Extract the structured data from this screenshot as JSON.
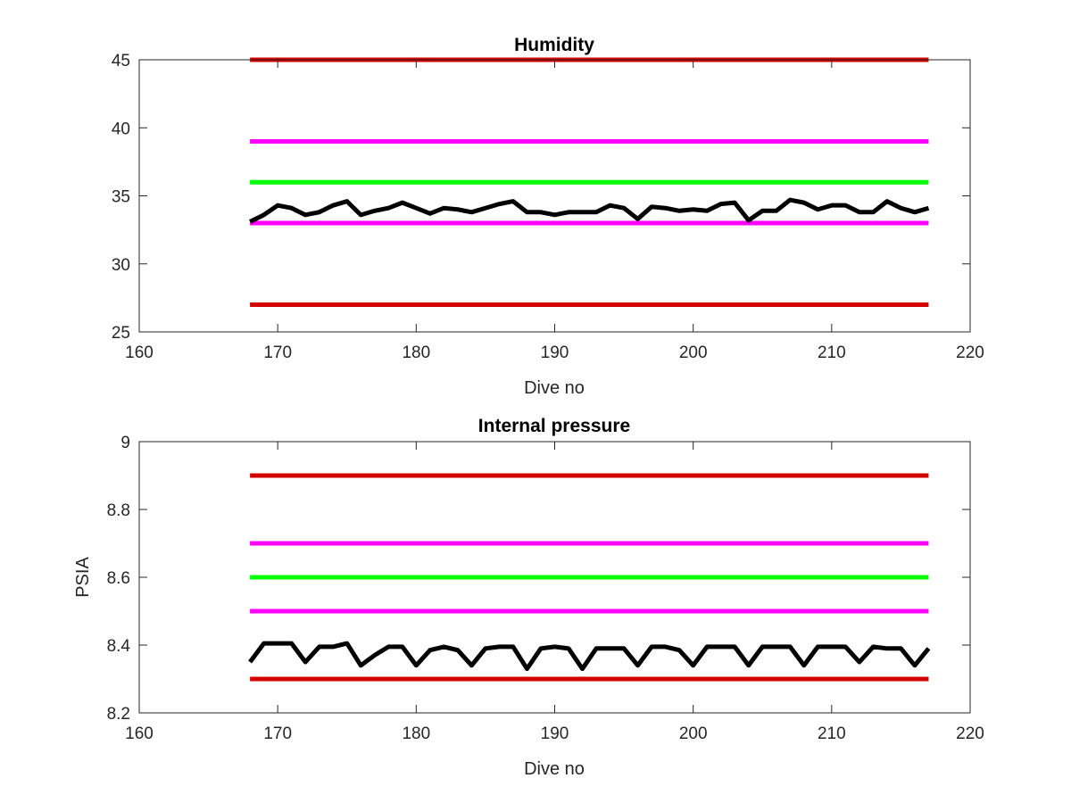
{
  "chart_data": [
    {
      "type": "line",
      "title": "Humidity",
      "xlabel": "Dive no",
      "ylabel": "",
      "xlim": [
        160,
        220
      ],
      "ylim": [
        25,
        45
      ],
      "xticks": [
        160,
        170,
        180,
        190,
        200,
        210,
        220
      ],
      "yticks": [
        25,
        30,
        35,
        40,
        45
      ],
      "grid": false,
      "series": [
        {
          "color": "#d40000",
          "x": [
            168,
            217
          ],
          "y": [
            45,
            45
          ]
        },
        {
          "color": "#ff00ff",
          "x": [
            168,
            217
          ],
          "y": [
            39,
            39
          ]
        },
        {
          "color": "#00ff00",
          "x": [
            168,
            217
          ],
          "y": [
            36,
            36
          ]
        },
        {
          "color": "#ff00ff",
          "x": [
            168,
            217
          ],
          "y": [
            33,
            33
          ]
        },
        {
          "color": "#d40000",
          "x": [
            168,
            217
          ],
          "y": [
            27,
            27
          ]
        },
        {
          "color": "#000000",
          "x": [
            168,
            169,
            170,
            171,
            172,
            173,
            174,
            175,
            176,
            177,
            178,
            179,
            180,
            181,
            182,
            183,
            184,
            185,
            186,
            187,
            188,
            189,
            190,
            191,
            192,
            193,
            194,
            195,
            196,
            197,
            198,
            199,
            200,
            201,
            202,
            203,
            204,
            205,
            206,
            207,
            208,
            209,
            210,
            211,
            212,
            213,
            214,
            215,
            216,
            217
          ],
          "y": [
            33.1,
            33.6,
            34.3,
            34.1,
            33.6,
            33.8,
            34.3,
            34.6,
            33.6,
            33.9,
            34.1,
            34.5,
            34.1,
            33.7,
            34.1,
            34.0,
            33.8,
            34.1,
            34.4,
            34.6,
            33.8,
            33.8,
            33.6,
            33.8,
            33.8,
            33.8,
            34.3,
            34.1,
            33.3,
            34.2,
            34.1,
            33.9,
            34.0,
            33.9,
            34.4,
            34.5,
            33.2,
            33.9,
            33.9,
            34.7,
            34.5,
            34.0,
            34.3,
            34.3,
            33.8,
            33.8,
            34.6,
            34.1,
            33.8,
            34.1
          ]
        }
      ]
    },
    {
      "type": "line",
      "title": "Internal pressure",
      "xlabel": "Dive no",
      "ylabel": "PSIA",
      "xlim": [
        160,
        220
      ],
      "ylim": [
        8.2,
        9.0
      ],
      "xticks": [
        160,
        170,
        180,
        190,
        200,
        210,
        220
      ],
      "yticks": [
        8.2,
        8.4,
        8.6,
        8.8,
        9.0
      ],
      "ytick_labels": [
        "8.2",
        "8.4",
        "8.6",
        "8.8",
        "9"
      ],
      "grid": false,
      "series": [
        {
          "color": "#d40000",
          "x": [
            168,
            217
          ],
          "y": [
            8.9,
            8.9
          ]
        },
        {
          "color": "#ff00ff",
          "x": [
            168,
            217
          ],
          "y": [
            8.7,
            8.7
          ]
        },
        {
          "color": "#00ff00",
          "x": [
            168,
            217
          ],
          "y": [
            8.6,
            8.6
          ]
        },
        {
          "color": "#ff00ff",
          "x": [
            168,
            217
          ],
          "y": [
            8.5,
            8.5
          ]
        },
        {
          "color": "#d40000",
          "x": [
            168,
            217
          ],
          "y": [
            8.3,
            8.3
          ]
        },
        {
          "color": "#000000",
          "x": [
            168,
            169,
            170,
            171,
            172,
            173,
            174,
            175,
            176,
            177,
            178,
            179,
            180,
            181,
            182,
            183,
            184,
            185,
            186,
            187,
            188,
            189,
            190,
            191,
            192,
            193,
            194,
            195,
            196,
            197,
            198,
            199,
            200,
            201,
            202,
            203,
            204,
            205,
            206,
            207,
            208,
            209,
            210,
            211,
            212,
            213,
            214,
            215,
            216,
            217
          ],
          "y": [
            8.35,
            8.405,
            8.405,
            8.405,
            8.35,
            8.395,
            8.395,
            8.405,
            8.34,
            8.37,
            8.395,
            8.395,
            8.34,
            8.385,
            8.395,
            8.385,
            8.34,
            8.39,
            8.395,
            8.395,
            8.33,
            8.39,
            8.395,
            8.39,
            8.33,
            8.39,
            8.39,
            8.39,
            8.34,
            8.395,
            8.395,
            8.385,
            8.34,
            8.395,
            8.395,
            8.395,
            8.34,
            8.395,
            8.395,
            8.395,
            8.34,
            8.395,
            8.395,
            8.395,
            8.35,
            8.395,
            8.39,
            8.39,
            8.34,
            8.39
          ]
        }
      ]
    }
  ]
}
